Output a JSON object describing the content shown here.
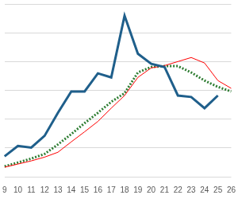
{
  "chart_data": {
    "type": "line",
    "categories": [
      "9",
      "10",
      "11",
      "12",
      "13",
      "14",
      "15",
      "16",
      "17",
      "18",
      "19",
      "20",
      "21",
      "22",
      "23",
      "24",
      "25",
      "26"
    ],
    "series": [
      {
        "color": "#1f5f8b",
        "line_style": "solid",
        "marker": "none",
        "values": [
          0.71,
          1.07,
          1.01,
          1.42,
          2.22,
          2.96,
          2.96,
          3.59,
          3.45,
          5.59,
          4.27,
          3.92,
          3.81,
          2.82,
          2.77,
          2.38,
          2.82,
          null
        ]
      },
      {
        "color": "#ff0000",
        "line_style": "solid",
        "marker": "none",
        "values": [
          0.33,
          0.44,
          0.55,
          0.68,
          0.85,
          1.21,
          1.56,
          1.92,
          2.38,
          2.82,
          3.45,
          3.78,
          3.86,
          4.0,
          4.14,
          3.95,
          3.34,
          3.07
        ]
      },
      {
        "color": "#2e7d32",
        "line_style": "dotted",
        "marker": "none",
        "values": [
          0.36,
          0.49,
          0.63,
          0.79,
          1.12,
          1.48,
          1.86,
          2.22,
          2.6,
          2.9,
          3.62,
          3.81,
          3.84,
          3.84,
          3.62,
          3.34,
          3.12,
          2.96
        ]
      }
    ],
    "ylim": [
      0,
      6
    ],
    "yticks": [
      0,
      1,
      2,
      3,
      4,
      5,
      6
    ],
    "grid": true,
    "tick_labels": "x"
  }
}
